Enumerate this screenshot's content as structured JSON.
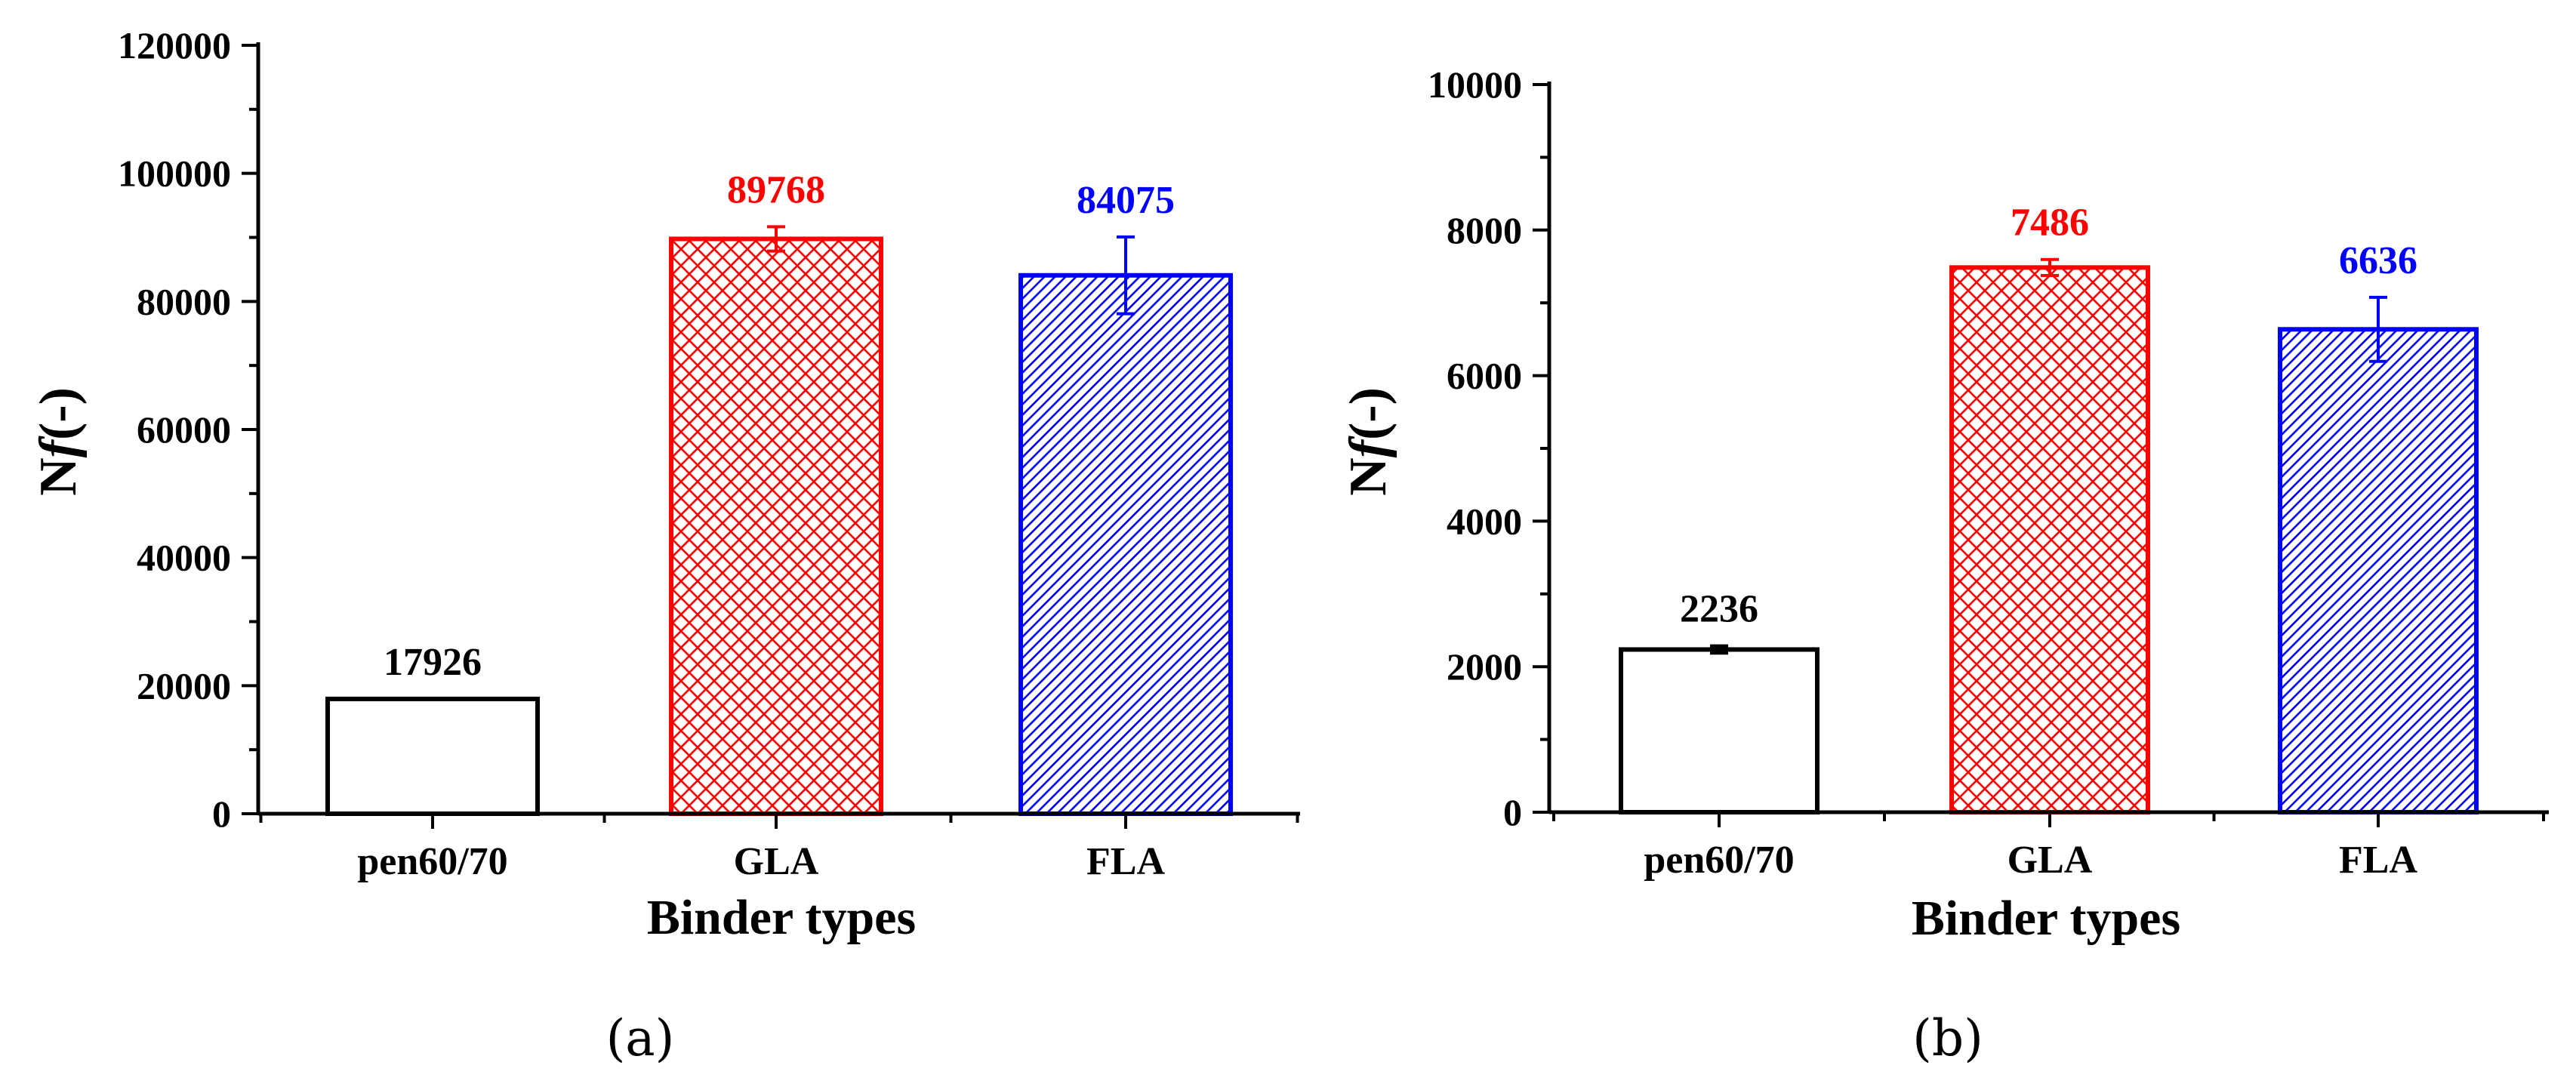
{
  "chart_data": [
    {
      "type": "bar",
      "panel_label": "(a)",
      "categories": [
        "pen60/70",
        "GLA",
        "FLA"
      ],
      "values": [
        17926,
        89768,
        84075
      ],
      "value_labels": [
        "17926",
        "89768",
        "84075"
      ],
      "error": [
        0,
        1900,
        6000
      ],
      "xlabel": "Binder types",
      "ylabel_prefix": "N",
      "ylabel_italic": "f",
      "ylabel_suffix": "(-)",
      "ylim": [
        0,
        120000
      ],
      "yticks": [
        0,
        20000,
        40000,
        60000,
        80000,
        100000,
        120000
      ],
      "ytick_labels": [
        "0",
        "20000",
        "40000",
        "60000",
        "80000",
        "100000",
        "120000"
      ],
      "minor_per_major": 1,
      "colors": [
        "#000000",
        "#ff0000",
        "#0000ff"
      ],
      "fills": [
        "none",
        "crosshatch",
        "diagonal"
      ]
    },
    {
      "type": "bar",
      "panel_label": "(b)",
      "categories": [
        "pen60/70",
        "GLA",
        "FLA"
      ],
      "values": [
        2236,
        7486,
        6636
      ],
      "value_labels": [
        "2236",
        "7486",
        "6636"
      ],
      "error": [
        50,
        110,
        440
      ],
      "xlabel": "Binder types",
      "ylabel_prefix": "N",
      "ylabel_italic": "f",
      "ylabel_suffix": "(-)",
      "ylim": [
        0,
        10000
      ],
      "yticks": [
        0,
        2000,
        4000,
        6000,
        8000,
        10000
      ],
      "ytick_labels": [
        "0",
        "2000",
        "4000",
        "6000",
        "8000",
        "10000"
      ],
      "minor_per_major": 1,
      "colors": [
        "#000000",
        "#ff0000",
        "#0000ff"
      ],
      "fills": [
        "none",
        "crosshatch",
        "diagonal"
      ]
    }
  ]
}
